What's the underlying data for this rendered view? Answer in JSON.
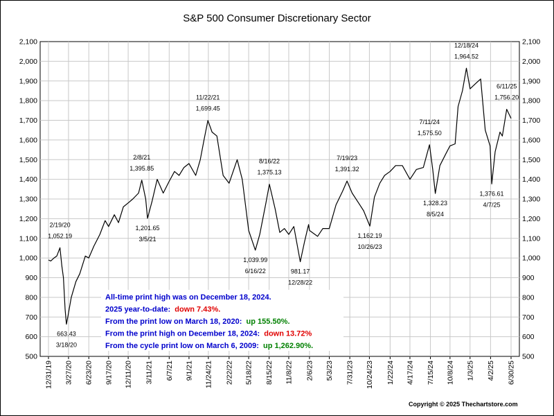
{
  "chart_data": {
    "type": "line",
    "title": "S&P 500 Consumer Discretionary Sector",
    "copyright": "Copyright © 2025 Thechartstore.com",
    "y_axis": {
      "min": 500,
      "max": 2100,
      "ticks": [
        500,
        600,
        700,
        800,
        900,
        1000,
        1100,
        1200,
        1300,
        1400,
        1500,
        1600,
        1700,
        1800,
        1900,
        2000,
        2100
      ],
      "tick_labels": [
        "500",
        "600",
        "700",
        "800",
        "900",
        "1,000",
        "1,100",
        "1,200",
        "1,300",
        "1,400",
        "1,500",
        "1,600",
        "1,700",
        "1,800",
        "1,900",
        "2,000",
        "2,100"
      ],
      "labels_both_sides": true
    },
    "x_axis": {
      "tick_labels": [
        "12/31/19",
        "3/27/20",
        "6/23/20",
        "9/17/20",
        "12/11/20",
        "3/11/21",
        "6/7/21",
        "9/1/21",
        "11/24/21",
        "2/22/22",
        "5/18/22",
        "8/15/22",
        "11/8/22",
        "2/6/23",
        "5/3/23",
        "7/31/23",
        "10/24/23",
        "1/22/24",
        "4/17/24",
        "7/15/24",
        "10/8/24",
        "1/3/25",
        "4/2/25",
        "6/30/25"
      ],
      "start_label": "12/31/19",
      "end_label": "6/30/25"
    },
    "grid": true,
    "series": [
      {
        "color": "#000000",
        "points": [
          [
            "12/31/19",
            990
          ],
          [
            "1/10/20",
            985
          ],
          [
            "1/24/20",
            1000
          ],
          [
            "2/5/20",
            1010
          ],
          [
            "2/19/20",
            1052.19
          ],
          [
            "2/27/20",
            960
          ],
          [
            "3/5/20",
            900
          ],
          [
            "3/12/20",
            740
          ],
          [
            "3/18/20",
            663.43
          ],
          [
            "3/24/20",
            700
          ],
          [
            "4/8/20",
            800
          ],
          [
            "4/28/20",
            880
          ],
          [
            "5/15/20",
            920
          ],
          [
            "6/8/20",
            1010
          ],
          [
            "6/23/20",
            1000
          ],
          [
            "7/15/20",
            1060
          ],
          [
            "8/10/20",
            1120
          ],
          [
            "9/2/20",
            1190
          ],
          [
            "9/17/20",
            1160
          ],
          [
            "10/12/20",
            1220
          ],
          [
            "10/30/20",
            1180
          ],
          [
            "11/20/20",
            1260
          ],
          [
            "12/11/20",
            1280
          ],
          [
            "12/31/20",
            1300
          ],
          [
            "1/25/21",
            1330
          ],
          [
            "2/8/21",
            1395.85
          ],
          [
            "2/25/21",
            1300
          ],
          [
            "3/5/21",
            1201.65
          ],
          [
            "3/25/21",
            1290
          ],
          [
            "4/16/21",
            1400
          ],
          [
            "5/12/21",
            1330
          ],
          [
            "6/7/21",
            1390
          ],
          [
            "6/30/21",
            1440
          ],
          [
            "7/20/21",
            1420
          ],
          [
            "8/10/21",
            1460
          ],
          [
            "9/1/21",
            1480
          ],
          [
            "9/30/21",
            1420
          ],
          [
            "10/20/21",
            1500
          ],
          [
            "11/5/21",
            1600
          ],
          [
            "11/22/21",
            1699.45
          ],
          [
            "12/10/21",
            1640
          ],
          [
            "12/31/21",
            1620
          ],
          [
            "1/27/22",
            1420
          ],
          [
            "2/22/22",
            1380
          ],
          [
            "3/29/22",
            1500
          ],
          [
            "4/20/22",
            1400
          ],
          [
            "5/18/22",
            1140
          ],
          [
            "6/16/22",
            1039.99
          ],
          [
            "7/5/22",
            1120
          ],
          [
            "8/1/22",
            1280
          ],
          [
            "8/16/22",
            1375.13
          ],
          [
            "9/10/22",
            1250
          ],
          [
            "9/30/22",
            1130
          ],
          [
            "10/20/22",
            1150
          ],
          [
            "11/8/22",
            1120
          ],
          [
            "11/30/22",
            1160
          ],
          [
            "12/28/22",
            981.17
          ],
          [
            "1/15/23",
            1080
          ],
          [
            "2/2/23",
            1170
          ],
          [
            "2/6/23",
            1140
          ],
          [
            "3/13/23",
            1110
          ],
          [
            "4/5/23",
            1150
          ],
          [
            "5/3/23",
            1150
          ],
          [
            "6/1/23",
            1270
          ],
          [
            "6/30/23",
            1340
          ],
          [
            "7/19/23",
            1391.32
          ],
          [
            "8/10/23",
            1330
          ],
          [
            "9/7/23",
            1280
          ],
          [
            "9/29/23",
            1240
          ],
          [
            "10/26/23",
            1162.19
          ],
          [
            "11/15/23",
            1310
          ],
          [
            "12/8/23",
            1380
          ],
          [
            "12/29/23",
            1420
          ],
          [
            "1/22/24",
            1440
          ],
          [
            "2/15/24",
            1470
          ],
          [
            "3/15/24",
            1470
          ],
          [
            "4/17/24",
            1400
          ],
          [
            "5/15/24",
            1450
          ],
          [
            "6/14/24",
            1460
          ],
          [
            "7/11/24",
            1575.5
          ],
          [
            "7/25/24",
            1450
          ],
          [
            "8/5/24",
            1328.23
          ],
          [
            "8/25/24",
            1470
          ],
          [
            "9/20/24",
            1530
          ],
          [
            "10/8/24",
            1570
          ],
          [
            "10/30/24",
            1580
          ],
          [
            "11/12/24",
            1770
          ],
          [
            "12/1/24",
            1850
          ],
          [
            "12/18/24",
            1964.52
          ],
          [
            "1/3/25",
            1860
          ],
          [
            "1/30/25",
            1890
          ],
          [
            "2/18/25",
            1910
          ],
          [
            "3/10/25",
            1650
          ],
          [
            "3/31/25",
            1570
          ],
          [
            "4/7/25",
            1376.61
          ],
          [
            "4/22/25",
            1540
          ],
          [
            "5/13/25",
            1640
          ],
          [
            "5/23/25",
            1620
          ],
          [
            "6/11/25",
            1756.2
          ],
          [
            "6/30/25",
            1710
          ]
        ]
      }
    ],
    "annotations": [
      {
        "date": "2/19/20",
        "value": "1,052.19",
        "x": "2/19/20",
        "y": 1052.19
      },
      {
        "date": "3/18/20",
        "value": "663.43",
        "x": "3/18/20",
        "y": 663.43
      },
      {
        "date": "2/8/21",
        "value": "1,395.85",
        "x": "2/8/21",
        "y": 1395.85
      },
      {
        "date": "3/5/21",
        "value": "1,201.65",
        "x": "3/5/21",
        "y": 1201.65
      },
      {
        "date": "11/22/21",
        "value": "1,699.45",
        "x": "11/22/21",
        "y": 1699.45
      },
      {
        "date": "6/16/22",
        "value": "1,039.99",
        "x": "6/16/22",
        "y": 1039.99
      },
      {
        "date": "8/16/22",
        "value": "1,375.13",
        "x": "8/16/22",
        "y": 1375.13
      },
      {
        "date": "12/28/22",
        "value": "981.17",
        "x": "12/28/22",
        "y": 981.17
      },
      {
        "date": "7/19/23",
        "value": "1,391.32",
        "x": "7/19/23",
        "y": 1391.32
      },
      {
        "date": "10/26/23",
        "value": "1,162.19",
        "x": "10/26/23",
        "y": 1162.19
      },
      {
        "date": "7/11/24",
        "value": "1,575.50",
        "x": "7/11/24",
        "y": 1575.5
      },
      {
        "date": "8/5/24",
        "value": "1,328.23",
        "x": "8/5/24",
        "y": 1328.23
      },
      {
        "date": "12/18/24",
        "value": "1,964.52",
        "x": "12/18/24",
        "y": 1964.52
      },
      {
        "date": "4/7/25",
        "value": "1,376.61",
        "x": "4/7/25",
        "y": 1376.61
      },
      {
        "date": "6/11/25",
        "value": "1,756.20",
        "x": "6/11/25",
        "y": 1756.2
      }
    ],
    "info_box": [
      {
        "parts": [
          {
            "text": "All-time print high was on December 18, 2024.",
            "color": "#0000cc"
          }
        ]
      },
      {
        "parts": [
          {
            "text": "2025 year-to-date:  ",
            "color": "#0000cc"
          },
          {
            "text": "down 7.43%.",
            "color": "#e00000"
          }
        ]
      },
      {
        "parts": [
          {
            "text": "From the print low on March 18, 2020:  ",
            "color": "#0000cc"
          },
          {
            "text": "up 155.50%.",
            "color": "#008000"
          }
        ]
      },
      {
        "parts": [
          {
            "text": "From the print high on December 18, 2024:  ",
            "color": "#0000cc"
          },
          {
            "text": "down 13.72%",
            "color": "#e00000"
          }
        ]
      },
      {
        "parts": [
          {
            "text": "From the cycle print low on March 6, 2009:  ",
            "color": "#0000cc"
          },
          {
            "text": "up 1,262.90%.",
            "color": "#008000"
          }
        ]
      }
    ]
  }
}
